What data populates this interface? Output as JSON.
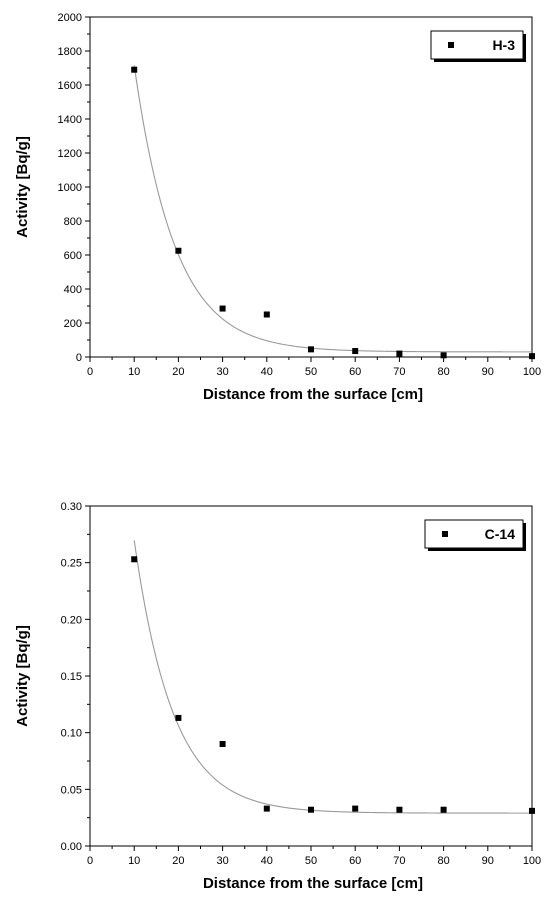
{
  "chart_data": [
    {
      "type": "scatter",
      "xlabel": "Distance from the surface [cm]",
      "ylabel": "Activity [Bq/g]",
      "xlim": [
        0,
        100
      ],
      "ylim": [
        0,
        2000
      ],
      "xticks": [
        "0",
        "10",
        "20",
        "30",
        "40",
        "50",
        "60",
        "70",
        "80",
        "90",
        "100"
      ],
      "yticks": [
        "0",
        "200",
        "400",
        "600",
        "800",
        "1000",
        "1200",
        "1400",
        "1600",
        "1800",
        "2000"
      ],
      "legend_position": "top-right",
      "series": [
        {
          "name": "H-3",
          "x": [
            10,
            20,
            30,
            40,
            50,
            60,
            70,
            80,
            100
          ],
          "y": [
            1690,
            625,
            285,
            250,
            45,
            35,
            20,
            10,
            5
          ]
        }
      ],
      "fit": {
        "type": "exponential",
        "y0": 30,
        "A": 4970,
        "t": 9.25
      }
    },
    {
      "type": "scatter",
      "xlabel": "Distance from the surface [cm]",
      "ylabel": "Activity [Bq/g]",
      "xlim": [
        0,
        100
      ],
      "ylim": [
        0,
        0.3
      ],
      "xticks": [
        "0",
        "10",
        "20",
        "30",
        "40",
        "50",
        "60",
        "70",
        "80",
        "90",
        "100"
      ],
      "yticks": [
        "0.00",
        "0.05",
        "0.10",
        "0.15",
        "0.20",
        "0.25",
        "0.30"
      ],
      "legend_position": "top-right",
      "series": [
        {
          "name": "C-14",
          "x": [
            10,
            20,
            30,
            40,
            50,
            60,
            70,
            80,
            100
          ],
          "y": [
            0.253,
            0.113,
            0.09,
            0.033,
            0.032,
            0.033,
            0.032,
            0.032,
            0.031
          ]
        }
      ],
      "fit": {
        "type": "exponential",
        "y0": 0.029,
        "A": 0.75,
        "t": 8.8
      }
    }
  ]
}
